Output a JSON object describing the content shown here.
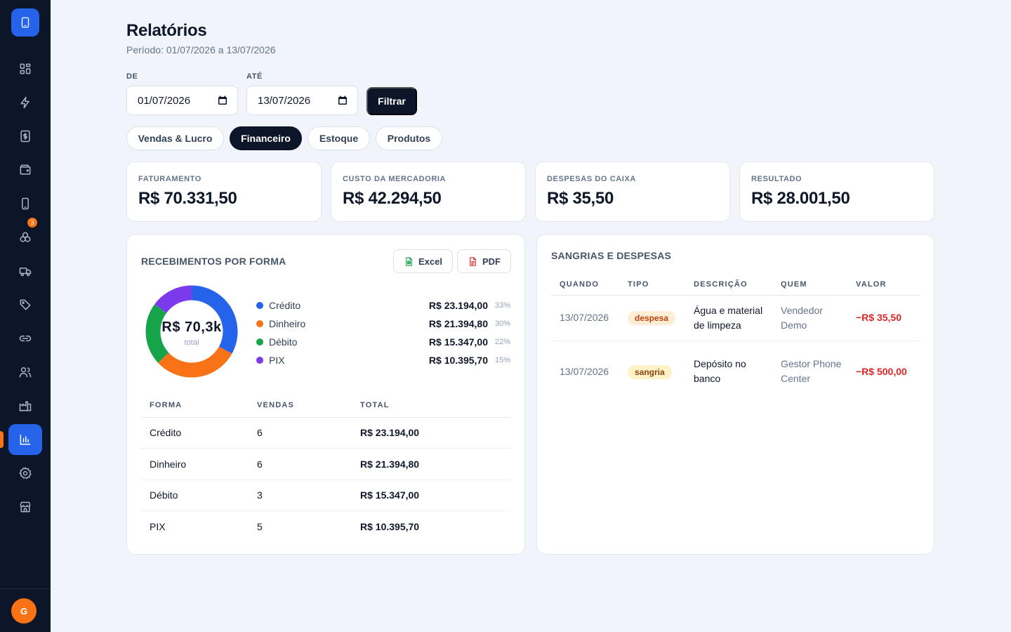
{
  "sidebar": {
    "badge_count": "3",
    "avatar_initial": "G",
    "items": [
      {
        "name": "dashboard"
      },
      {
        "name": "quick-sale"
      },
      {
        "name": "cash-register"
      },
      {
        "name": "wallet"
      },
      {
        "name": "devices"
      },
      {
        "name": "parts"
      },
      {
        "name": "delivery"
      },
      {
        "name": "tags"
      },
      {
        "name": "links"
      },
      {
        "name": "customers"
      },
      {
        "name": "factory"
      },
      {
        "name": "reports",
        "active": true
      },
      {
        "name": "settings"
      },
      {
        "name": "store"
      }
    ]
  },
  "header": {
    "title": "Relatórios",
    "subtitle": "Período: 01/07/2026 a 13/07/2026"
  },
  "filters": {
    "from_label": "DE",
    "from_value": "01/07/2026",
    "to_label": "ATÉ",
    "to_value": "13/07/2026",
    "filter_button": "Filtrar"
  },
  "tabs": [
    {
      "label": "Vendas & Lucro",
      "active": false
    },
    {
      "label": "Financeiro",
      "active": true
    },
    {
      "label": "Estoque",
      "active": false
    },
    {
      "label": "Produtos",
      "active": false
    }
  ],
  "kpis": [
    {
      "label": "FATURAMENTO",
      "value": "R$ 70.331,50"
    },
    {
      "label": "CUSTO DA MERCADORIA",
      "value": "R$ 42.294,50"
    },
    {
      "label": "DESPESAS DO CAIXA",
      "value": "R$ 35,50"
    },
    {
      "label": "RESULTADO",
      "value": "R$ 28.001,50"
    }
  ],
  "receipts": {
    "title": "RECEBIMENTOS POR FORMA",
    "excel_label": "Excel",
    "pdf_label": "PDF",
    "donut_total": "R$ 70,3k",
    "donut_caption": "total",
    "legend": [
      {
        "name": "Crédito",
        "amount": "R$ 23.194,00",
        "pct": "33%",
        "color": "#2563eb",
        "share": 0.33
      },
      {
        "name": "Dinheiro",
        "amount": "R$ 21.394,80",
        "pct": "30%",
        "color": "#f97316",
        "share": 0.3
      },
      {
        "name": "Débito",
        "amount": "R$ 15.347,00",
        "pct": "22%",
        "color": "#16a34a",
        "share": 0.22
      },
      {
        "name": "PIX",
        "amount": "R$ 10.395,70",
        "pct": "15%",
        "color": "#7c3aed",
        "share": 0.15
      }
    ],
    "table": {
      "headers": [
        "FORMA",
        "VENDAS",
        "TOTAL"
      ],
      "rows": [
        [
          "Crédito",
          "6",
          "R$ 23.194,00"
        ],
        [
          "Dinheiro",
          "6",
          "R$ 21.394,80"
        ],
        [
          "Débito",
          "3",
          "R$ 15.347,00"
        ],
        [
          "PIX",
          "5",
          "R$ 10.395,70"
        ]
      ]
    }
  },
  "withdrawals": {
    "title": "SANGRIAS E DESPESAS",
    "headers": [
      "QUANDO",
      "TIPO",
      "DESCRIÇÃO",
      "QUEM",
      "VALOR"
    ],
    "rows": [
      {
        "when": "13/07/2026",
        "type": "despesa",
        "description": "Água e material de limpeza",
        "who": "Vendedor Demo",
        "value": "−R$ 35,50"
      },
      {
        "when": "13/07/2026",
        "type": "sangria",
        "description": "Depósito no banco",
        "who": "Gestor Phone Center",
        "value": "−R$ 500,00"
      }
    ]
  }
}
